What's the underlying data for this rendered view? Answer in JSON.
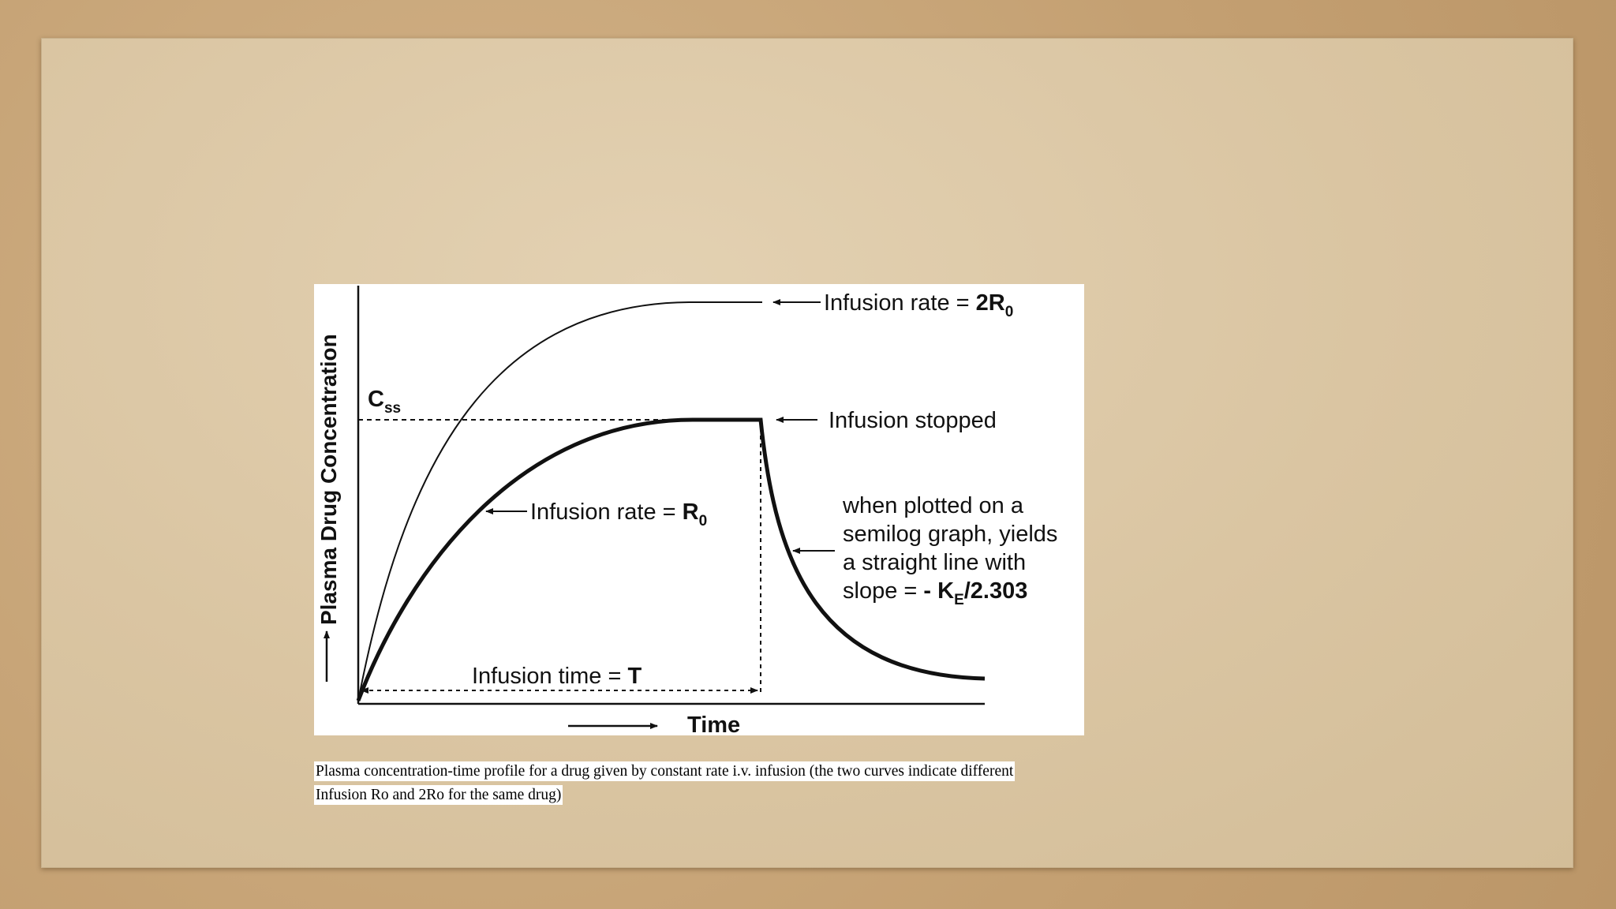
{
  "figure": {
    "y_axis_label": "Plasma Drug Concentration",
    "x_axis_label": "Time",
    "css_label": "C",
    "css_sub": "ss",
    "top_curve_label_prefix": "Infusion rate = ",
    "top_curve_label_value": "2R",
    "top_curve_label_sub": "0",
    "stop_label": "Infusion stopped",
    "lower_curve_label_prefix": "Infusion rate = ",
    "lower_curve_label_value": "R",
    "lower_curve_label_sub": "0",
    "semilog_line1": "when plotted on a",
    "semilog_line2": "semilog graph, yields",
    "semilog_line3": "a straight line with",
    "semilog_line4_prefix": "slope = ",
    "semilog_line4_value": "- K",
    "semilog_line4_sub": "E",
    "semilog_line4_tail": "/2.303",
    "infusion_time_prefix": "Infusion time = ",
    "infusion_time_value": "T"
  },
  "caption": {
    "line1": "Plasma concentration-time profile for a drug given by constant rate i.v. infusion (the two curves indicate different",
    "line2": " Infusion  Ro and 2Ro for the same drug)"
  }
}
